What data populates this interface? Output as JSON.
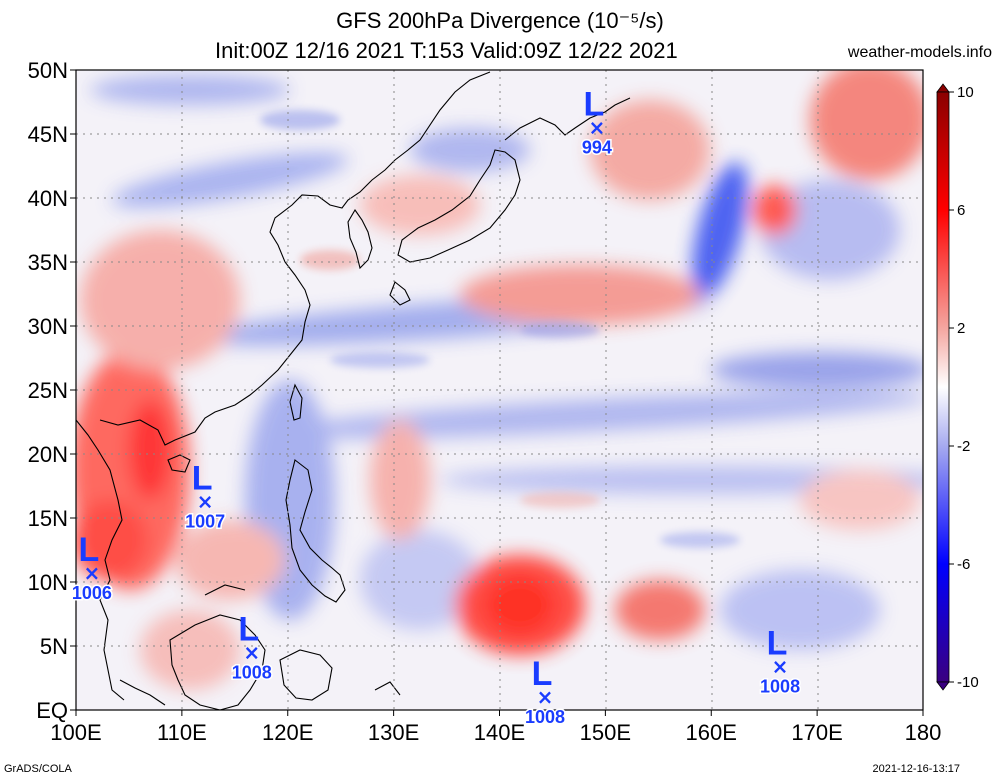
{
  "header": {
    "title": "GFS 200hPa Divergence (10⁻⁵/s)",
    "subtitle": "Init:00Z 12/16 2021 T:153 Valid:09Z 12/22 2021",
    "site": "weather-models.info"
  },
  "footer": {
    "left": "GrADS/COLA",
    "right": "2021-12-16-13:17"
  },
  "axes": {
    "lat_labels": [
      "50N",
      "45N",
      "40N",
      "35N",
      "30N",
      "25N",
      "20N",
      "15N",
      "10N",
      "5N",
      "EQ"
    ],
    "lat_values": [
      50,
      45,
      40,
      35,
      30,
      25,
      20,
      15,
      10,
      5,
      0
    ],
    "lon_labels": [
      "100E",
      "110E",
      "120E",
      "130E",
      "140E",
      "150E",
      "160E",
      "170E",
      "180"
    ],
    "lon_values": [
      100,
      110,
      120,
      130,
      140,
      150,
      160,
      170,
      180
    ],
    "lon_range": [
      100,
      180
    ],
    "lat_range": [
      0,
      50
    ],
    "grid": true
  },
  "colorbar": {
    "labels": [
      "10",
      "6",
      "2",
      "-2",
      "-6",
      "-10"
    ],
    "values": [
      10,
      6,
      2,
      -2,
      -6,
      -10
    ],
    "colors": {
      "max": "#8b0000",
      "high": "#ff0000",
      "mid_high": "#f4a6a0",
      "zero": "#ffffff",
      "mid_low": "#a6aaf0",
      "low": "#0000ff",
      "min": "#3a0080"
    }
  },
  "lows": [
    {
      "letter": "L",
      "pressure": "994",
      "lon": 149.2,
      "lat": 45.5
    },
    {
      "letter": "L",
      "pressure": "1007",
      "lon": 112.2,
      "lat": 16.3
    },
    {
      "letter": "L",
      "pressure": "1006",
      "lon": 101.5,
      "lat": 10.7
    },
    {
      "letter": "L",
      "pressure": "1008",
      "lon": 116.6,
      "lat": 4.5
    },
    {
      "letter": "L",
      "pressure": "1008",
      "lon": 144.3,
      "lat": 1.0
    },
    {
      "letter": "L",
      "pressure": "1008",
      "lon": 166.5,
      "lat": 3.4
    }
  ],
  "colors": {
    "red_core": "#ff2020",
    "red_light": "#f8b8b4",
    "blue_core": "#2030ff",
    "blue_light": "#b8bcf4",
    "coast": "#000000",
    "low_marker": "#1a3cff"
  }
}
